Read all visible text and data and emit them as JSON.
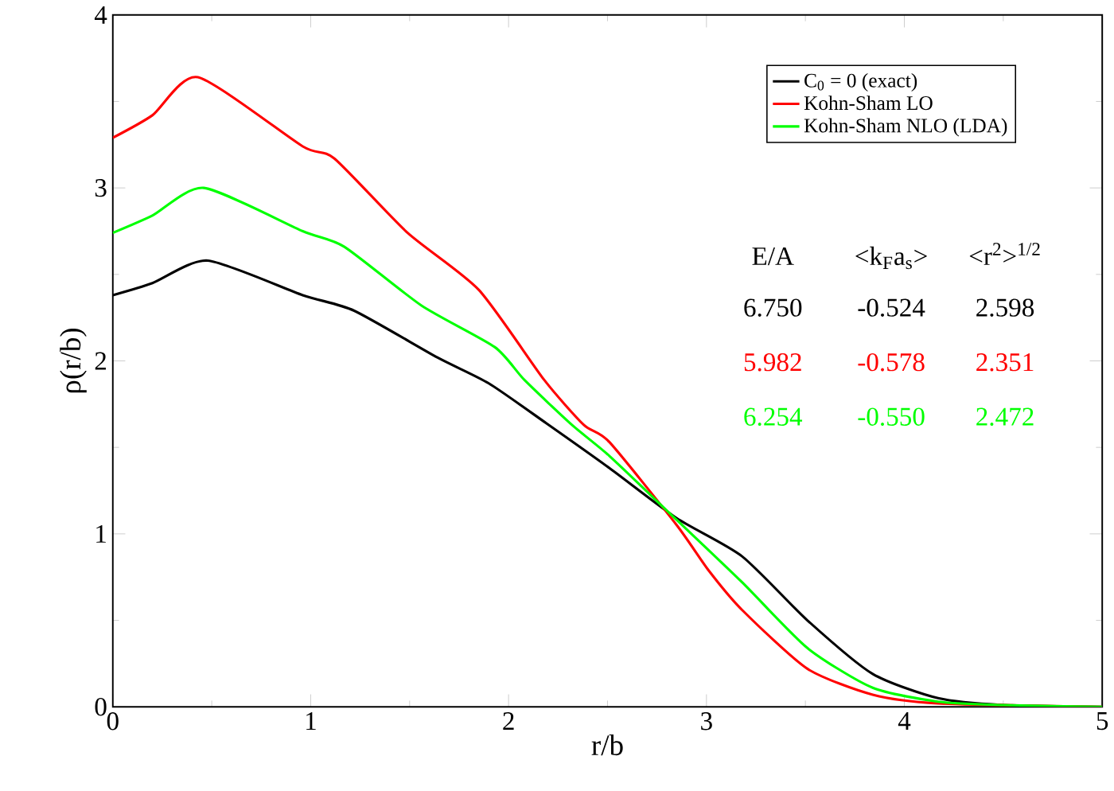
{
  "chart_data": {
    "type": "line",
    "xlabel": "r/b",
    "ylabel": "ρ(r/b)",
    "xlim": [
      0,
      5
    ],
    "ylim": [
      0,
      4
    ],
    "xticks": [
      0,
      1,
      2,
      3,
      4,
      5
    ],
    "yticks": [
      0,
      1,
      2,
      3,
      4
    ],
    "legend": "top right",
    "grid": false,
    "marker": "none",
    "line_style": "solid",
    "series": [
      {
        "name": "C$_{0}$ = 0 (exact)",
        "color": "#000000",
        "x": [
          0,
          0.2,
          0.48,
          0.96,
          1.22,
          1.64,
          1.9,
          2.19,
          2.51,
          2.85,
          3.18,
          3.51,
          3.84,
          4.17,
          4.5,
          5
        ],
        "values": [
          2.38,
          2.45,
          2.58,
          2.38,
          2.29,
          2.02,
          1.87,
          1.64,
          1.38,
          1.09,
          0.87,
          0.5,
          0.19,
          0.05,
          0.01,
          0
        ]
      },
      {
        "name": "Kohn-Sham LO",
        "color": "#ff0000",
        "x": [
          0,
          0.2,
          0.43,
          0.96,
          1.12,
          1.49,
          1.85,
          2.18,
          2.38,
          2.51,
          2.85,
          3.01,
          3.18,
          3.51,
          3.84,
          4.17,
          5
        ],
        "values": [
          3.29,
          3.42,
          3.64,
          3.24,
          3.17,
          2.74,
          2.41,
          1.89,
          1.63,
          1.53,
          1.05,
          0.79,
          0.56,
          0.22,
          0.07,
          0.02,
          0
        ]
      },
      {
        "name": "Kohn-Sham NLO (LDA)",
        "color": "#00ff00",
        "x": [
          0,
          0.2,
          0.46,
          0.96,
          1.17,
          1.56,
          1.93,
          2.08,
          2.32,
          2.51,
          2.85,
          3.18,
          3.51,
          3.84,
          4.17,
          4.5,
          5
        ],
        "values": [
          2.74,
          2.84,
          3.0,
          2.75,
          2.66,
          2.32,
          2.08,
          1.89,
          1.63,
          1.45,
          1.08,
          0.72,
          0.34,
          0.11,
          0.03,
          0.01,
          0
        ]
      }
    ],
    "annotations": [
      "E/A",
      "<k$_{F}$a$_{s}$>",
      "<r$^{2}$>$^{1/2}$",
      "6.750",
      "-0.524",
      "2.598",
      "5.982",
      "-0.578",
      "2.351",
      "6.254",
      "-0.550",
      "2.472"
    ]
  }
}
